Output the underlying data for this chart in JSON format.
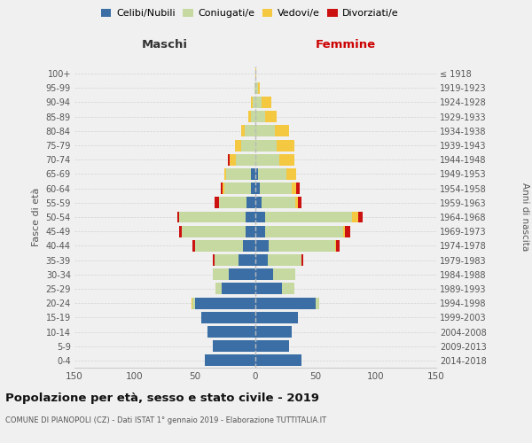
{
  "age_groups_display": [
    "0-4",
    "5-9",
    "10-14",
    "15-19",
    "20-24",
    "25-29",
    "30-34",
    "35-39",
    "40-44",
    "45-49",
    "50-54",
    "55-59",
    "60-64",
    "65-69",
    "70-74",
    "75-79",
    "80-84",
    "85-89",
    "90-94",
    "95-99",
    "100+"
  ],
  "birth_years_display": [
    "2014-2018",
    "2009-2013",
    "2004-2008",
    "1999-2003",
    "1994-1998",
    "1989-1993",
    "1984-1988",
    "1979-1983",
    "1974-1978",
    "1969-1973",
    "1964-1968",
    "1959-1963",
    "1954-1958",
    "1949-1953",
    "1944-1948",
    "1939-1943",
    "1934-1938",
    "1929-1933",
    "1924-1928",
    "1919-1923",
    "≤ 1918"
  ],
  "colors": {
    "celibi": "#3a6ea5",
    "coniugati": "#c5d9a0",
    "vedovi": "#f5c842",
    "divorziati": "#cc1111"
  },
  "maschi": {
    "celibi": [
      42,
      35,
      40,
      45,
      50,
      28,
      22,
      14,
      10,
      8,
      8,
      7,
      4,
      4,
      0,
      0,
      0,
      0,
      0,
      0,
      0
    ],
    "coniugati": [
      0,
      0,
      0,
      0,
      2,
      5,
      13,
      20,
      40,
      53,
      55,
      23,
      22,
      20,
      16,
      12,
      9,
      4,
      2,
      1,
      0
    ],
    "vedovi": [
      0,
      0,
      0,
      0,
      1,
      0,
      0,
      0,
      0,
      0,
      0,
      0,
      1,
      2,
      5,
      5,
      3,
      2,
      2,
      0,
      0
    ],
    "divorziati": [
      0,
      0,
      0,
      0,
      0,
      0,
      0,
      1,
      2,
      2,
      2,
      4,
      2,
      0,
      2,
      0,
      0,
      0,
      0,
      0,
      0
    ]
  },
  "femmine": {
    "celibi": [
      38,
      28,
      30,
      35,
      50,
      22,
      15,
      10,
      11,
      8,
      8,
      5,
      4,
      2,
      0,
      0,
      0,
      0,
      0,
      0,
      0
    ],
    "coniugati": [
      0,
      0,
      0,
      0,
      3,
      10,
      18,
      28,
      55,
      65,
      72,
      28,
      26,
      24,
      20,
      18,
      16,
      8,
      5,
      2,
      0
    ],
    "vedovi": [
      0,
      0,
      0,
      0,
      0,
      0,
      0,
      0,
      1,
      1,
      5,
      2,
      4,
      8,
      12,
      14,
      12,
      10,
      8,
      2,
      1
    ],
    "divorziati": [
      0,
      0,
      0,
      0,
      0,
      0,
      0,
      2,
      3,
      5,
      4,
      3,
      3,
      0,
      0,
      0,
      0,
      0,
      0,
      0,
      0
    ]
  },
  "xlim": 150,
  "title": "Popolazione per età, sesso e stato civile - 2019",
  "subtitle": "COMUNE DI PIANOPOLI (CZ) - Dati ISTAT 1° gennaio 2019 - Elaborazione TUTTITALIA.IT",
  "ylabel_left": "Fasce di età",
  "ylabel_right": "Anni di nascita",
  "xlabel_left": "Maschi",
  "xlabel_right": "Femmine",
  "legend_labels": [
    "Celibi/Nubili",
    "Coniugati/e",
    "Vedovi/e",
    "Divorziati/e"
  ],
  "background_color": "#f0f0f0",
  "grid_color": "#cccccc"
}
